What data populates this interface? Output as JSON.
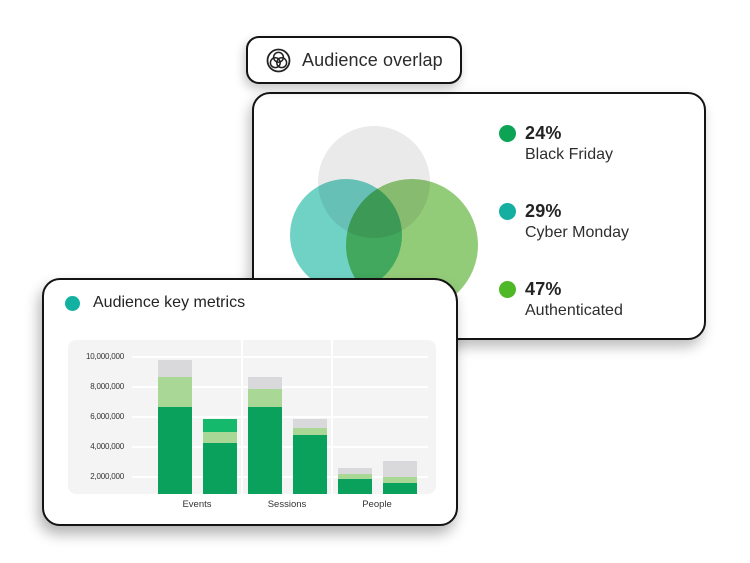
{
  "badge": {
    "label": "Audience overlap"
  },
  "overlap_card": {
    "name": "Audience overlap card"
  },
  "metrics_card": {
    "title": "Audience key metrics",
    "marker_color": "#12B1A1"
  },
  "chart_data": [
    {
      "type": "venn",
      "title": "Audience overlap",
      "legend": [
        {
          "percent": "24%",
          "label": "Black Friday",
          "color": "#0CA355"
        },
        {
          "percent": "29%",
          "label": "Cyber Monday",
          "color": "#14AFA1"
        },
        {
          "percent": "47%",
          "label": "Authenticated",
          "color": "#4FB826"
        }
      ],
      "circles": [
        {
          "name": "top-gray",
          "fill": "#EAEAEA"
        },
        {
          "name": "left-teal",
          "fill": "#70D2C5"
        },
        {
          "name": "right-green",
          "fill": "#93CC79"
        }
      ]
    },
    {
      "type": "bar",
      "stacked": true,
      "title": "Audience key metrics",
      "categories": [
        "Events",
        "Sessions",
        "People"
      ],
      "y_ticks": [
        2000000,
        4000000,
        6000000,
        8000000,
        10000000
      ],
      "y_tick_labels": [
        "2,000,000",
        "4,000,000",
        "6,000,000",
        "8,000,000",
        "10,000,000"
      ],
      "ylim": [
        870000,
        11140000
      ],
      "grid": true,
      "palette": {
        "green": "#0AA15C",
        "light_green": "#A9D795",
        "gray": "#D9D9DB",
        "bright_green": "#14B96B"
      },
      "bars": [
        {
          "category": "Events",
          "total": 9800000,
          "segments": [
            {
              "color": "green",
              "value": 6700000
            },
            {
              "color": "light_green",
              "value": 2000000
            },
            {
              "color": "gray",
              "value": 1100000
            }
          ]
        },
        {
          "category": "Events",
          "total": 5900000,
          "segments": [
            {
              "color": "green",
              "value": 4300000
            },
            {
              "color": "light_green",
              "value": 700000
            },
            {
              "color": "bright_green",
              "value": 900000
            }
          ]
        },
        {
          "category": "Sessions",
          "total": 8700000,
          "segments": [
            {
              "color": "green",
              "value": 6700000
            },
            {
              "color": "light_green",
              "value": 1200000
            },
            {
              "color": "gray",
              "value": 800000
            }
          ]
        },
        {
          "category": "Sessions",
          "total": 5900000,
          "segments": [
            {
              "color": "green",
              "value": 4800000
            },
            {
              "color": "light_green",
              "value": 500000
            },
            {
              "color": "gray",
              "value": 600000
            }
          ]
        },
        {
          "category": "People",
          "total": 2600000,
          "segments": [
            {
              "color": "green",
              "value": 1900000
            },
            {
              "color": "light_green",
              "value": 300000
            },
            {
              "color": "gray",
              "value": 400000
            }
          ]
        },
        {
          "category": "People",
          "total": 3100000,
          "segments": [
            {
              "color": "green",
              "value": 1600000
            },
            {
              "color": "light_green",
              "value": 400000
            },
            {
              "color": "gray",
              "value": 1100000
            }
          ]
        }
      ]
    }
  ]
}
